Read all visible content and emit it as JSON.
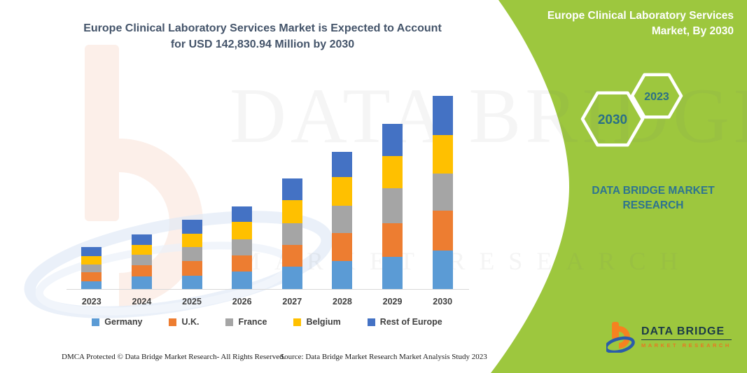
{
  "header": {
    "title_line1": "Europe Clinical Laboratory Services Market is Expected to Account",
    "title_line2": "for USD 142,830.94 Million by 2030"
  },
  "side_panel": {
    "bg_color": "#9DC73E",
    "title_line1": "Europe Clinical Laboratory Services",
    "title_line2": "Market, By 2030",
    "hex_large": "2030",
    "hex_small": "2023",
    "brand_line1": "DATA BRIDGE MARKET",
    "brand_line2": "RESEARCH"
  },
  "chart_data": {
    "type": "bar",
    "stacked": true,
    "title": "Europe Clinical Laboratory Services Market is Expected to Account for USD 142,830.94 Million by 2030",
    "unit": "USD Million",
    "projected_total_2030": "142,830.94",
    "grid": false,
    "legend_position": "bottom",
    "categories": [
      "2023",
      "2024",
      "2025",
      "2026",
      "2027",
      "2028",
      "2029",
      "2030"
    ],
    "series": [
      {
        "name": "Germany",
        "color": "#5B9BD5",
        "values": [
          5700,
          9300,
          9800,
          12900,
          16600,
          20700,
          23800,
          28500
        ]
      },
      {
        "name": "U.K.",
        "color": "#ED7D31",
        "values": [
          6700,
          8300,
          10900,
          11900,
          16000,
          20700,
          24800,
          29500
        ]
      },
      {
        "name": "France",
        "color": "#A5A5A5",
        "values": [
          5700,
          7800,
          10400,
          11900,
          16000,
          20200,
          25900,
          27400
        ]
      },
      {
        "name": "Belgium",
        "color": "#FFC000",
        "values": [
          6200,
          7200,
          9800,
          12900,
          17100,
          21200,
          23800,
          28500
        ]
      },
      {
        "name": "Rest of Europe",
        "color": "#4472C4",
        "values": [
          6700,
          7800,
          10400,
          11400,
          16000,
          18600,
          23800,
          29000
        ]
      }
    ]
  },
  "watermark": {
    "text_line1": "DATA BRIDGE",
    "text_line2": "MARKET RESEARCH"
  },
  "footer": {
    "dmca": "DMCA Protected © Data Bridge Market Research-  All Rights Reserved.",
    "source": "Source: Data Bridge Market Research  Market Analysis Study 2023"
  },
  "logo": {
    "name": "DATA BRIDGE",
    "tagline": "MARKET RESEARCH"
  }
}
